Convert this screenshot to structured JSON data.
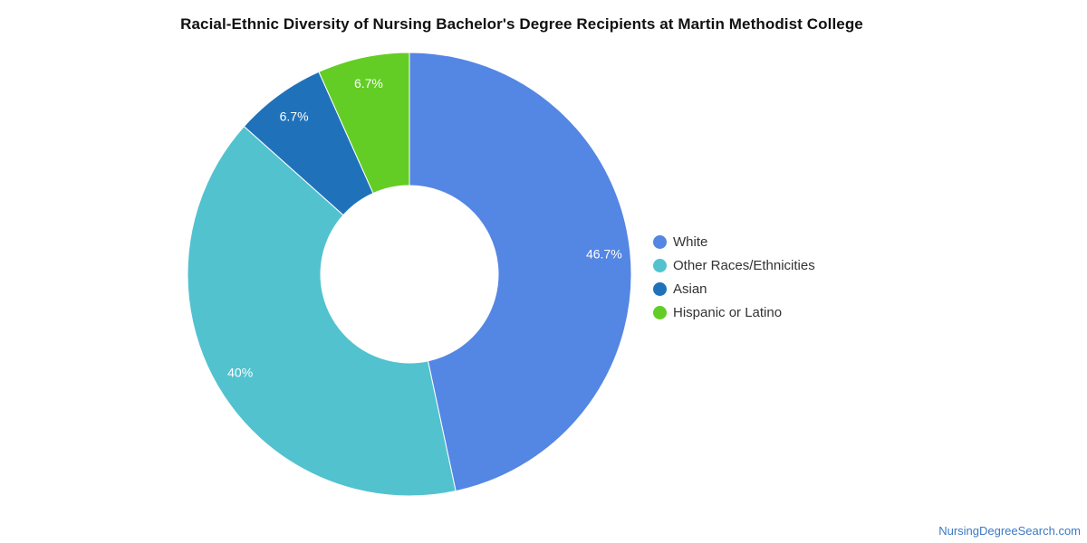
{
  "chart_data": {
    "type": "pie",
    "title": "Racial-Ethnic Diversity of Nursing Bachelor's Degree Recipients at Martin Methodist College",
    "categories": [
      "White",
      "Other Races/Ethnicities",
      "Asian",
      "Hispanic or Latino"
    ],
    "values": [
      46.7,
      40,
      6.7,
      6.7
    ],
    "labels": [
      "46.7%",
      "40%",
      "6.7%",
      "6.7%"
    ],
    "colors": [
      "#5486e3",
      "#52c2cf",
      "#1f72ba",
      "#63cd26"
    ],
    "donut": true,
    "legend_position": "right"
  },
  "watermark": "NursingDegreeSearch.com"
}
